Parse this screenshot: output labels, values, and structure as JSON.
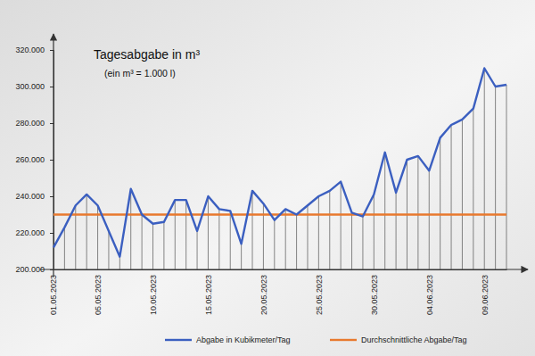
{
  "chart_data": {
    "type": "line",
    "title": "Tagesabgabe in m³",
    "subtitle": "(ein m³ = 1.000 l)",
    "categories": [
      "01.05.2023",
      null,
      null,
      null,
      "05.05.2023",
      null,
      null,
      null,
      null,
      "10.05.2023",
      null,
      null,
      null,
      null,
      "15.05.2023",
      null,
      null,
      null,
      null,
      "20.05.2023",
      null,
      null,
      null,
      null,
      "25.05.2023",
      null,
      null,
      null,
      null,
      "30.05.2023",
      null,
      null,
      null,
      null,
      "04.06.2023",
      null,
      null,
      null,
      null,
      "09.06.2023",
      null,
      null
    ],
    "series": [
      {
        "name": "Abgabe in Kubikmeter/Tag",
        "color": "#3b5fc0",
        "values": [
          212000,
          223000,
          235000,
          241000,
          235000,
          221000,
          207000,
          244000,
          230000,
          225000,
          226000,
          238000,
          238000,
          221000,
          240000,
          233000,
          232000,
          214000,
          243000,
          236000,
          227000,
          233000,
          230000,
          235000,
          240000,
          243000,
          248000,
          231000,
          229000,
          241000,
          264000,
          242000,
          260000,
          262000,
          254000,
          272000,
          279000,
          282000,
          288000,
          310000,
          300000,
          301000
        ]
      },
      {
        "name": "Durchschnittliche Abgabe/Tag",
        "color": "#e8792e",
        "values": [
          230000,
          230000,
          230000,
          230000,
          230000,
          230000,
          230000,
          230000,
          230000,
          230000,
          230000,
          230000,
          230000,
          230000,
          230000,
          230000,
          230000,
          230000,
          230000,
          230000,
          230000,
          230000,
          230000,
          230000,
          230000,
          230000,
          230000,
          230000,
          230000,
          230000,
          230000,
          230000,
          230000,
          230000,
          230000,
          230000,
          230000,
          230000,
          230000,
          230000,
          230000,
          230000
        ]
      }
    ],
    "ylim": [
      200000,
      320000
    ],
    "yticks": [
      {
        "value": 200000,
        "label": "200.000"
      },
      {
        "value": 220000,
        "label": "220.000"
      },
      {
        "value": 240000,
        "label": "240.000"
      },
      {
        "value": 260000,
        "label": "260.000"
      },
      {
        "value": 280000,
        "label": "280.000"
      },
      {
        "value": 300000,
        "label": "300.000"
      },
      {
        "value": 320000,
        "label": "320.000"
      }
    ],
    "grid": false,
    "legend": "bottom"
  }
}
